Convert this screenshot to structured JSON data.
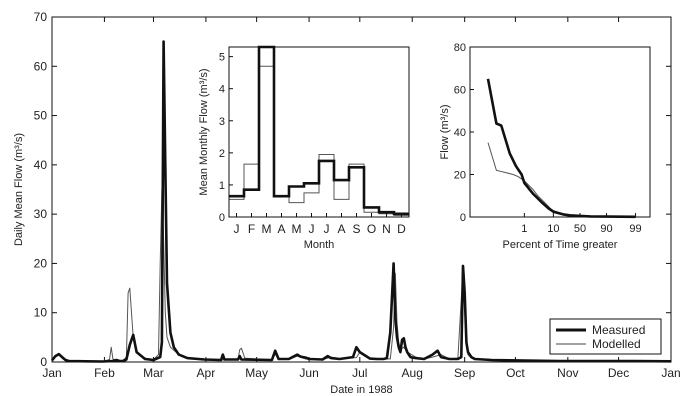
{
  "chart_data": [
    {
      "type": "line",
      "xlabel": "Date in 1988",
      "ylabel": "Daily Mean Flow (m³/s)",
      "ylim": [
        0,
        70
      ],
      "xlim": [
        0,
        366
      ],
      "yticks": [
        0,
        10,
        20,
        30,
        40,
        50,
        60,
        70
      ],
      "xticks": [
        {
          "label": "Jan",
          "day": 0
        },
        {
          "label": "Feb",
          "day": 31
        },
        {
          "label": "Mar",
          "day": 60
        },
        {
          "label": "Apr",
          "day": 91
        },
        {
          "label": "May",
          "day": 121
        },
        {
          "label": "Jun",
          "day": 152
        },
        {
          "label": "Jul",
          "day": 182
        },
        {
          "label": "Aug",
          "day": 213
        },
        {
          "label": "Sep",
          "day": 244
        },
        {
          "label": "Oct",
          "day": 274
        },
        {
          "label": "Nov",
          "day": 305
        },
        {
          "label": "Dec",
          "day": 335
        },
        {
          "label": "Jan",
          "day": 366
        }
      ],
      "legend": {
        "placement": "bottom-right",
        "entries": [
          "Measured",
          "Modelled"
        ]
      },
      "series": [
        {
          "name": "Measured",
          "x": [
            0,
            2,
            4,
            6,
            8,
            10,
            20,
            30,
            36,
            38,
            40,
            42,
            44,
            46,
            48,
            50,
            55,
            60,
            64,
            65,
            66,
            67,
            68,
            70,
            72,
            75,
            80,
            90,
            100,
            101,
            102,
            110,
            111,
            112,
            130,
            132,
            134,
            140,
            145,
            147,
            150,
            152,
            160,
            163,
            165,
            170,
            178,
            180,
            182,
            188,
            192,
            196,
            198,
            200,
            202,
            203,
            204,
            205,
            206,
            207,
            208,
            209,
            210,
            212,
            215,
            220,
            225,
            228,
            230,
            235,
            240,
            242,
            243,
            244,
            245,
            246,
            248,
            250,
            255,
            260,
            270,
            280,
            290,
            300,
            320,
            340,
            366
          ],
          "y": [
            0.3,
            1.2,
            1.6,
            1.0,
            0.4,
            0.2,
            0.15,
            0.1,
            0.2,
            0.4,
            0.2,
            0.2,
            0.5,
            3.5,
            5.5,
            2.0,
            0.6,
            0.4,
            1.0,
            4.0,
            65,
            40,
            16,
            6.0,
            3.0,
            1.5,
            0.8,
            0.5,
            0.4,
            1.5,
            0.5,
            0.5,
            1.2,
            0.5,
            0.4,
            2.3,
            0.6,
            0.6,
            1.5,
            1.1,
            0.9,
            0.6,
            0.5,
            1.2,
            0.8,
            0.6,
            1.0,
            3.0,
            2.0,
            0.7,
            0.6,
            0.6,
            0.8,
            6.0,
            20,
            9.0,
            5.0,
            3.0,
            2.0,
            4.5,
            4.8,
            3.0,
            2.0,
            1.0,
            0.8,
            0.6,
            1.5,
            2.3,
            1.0,
            0.6,
            0.6,
            1.0,
            19.5,
            14,
            4.0,
            2.0,
            1.0,
            0.6,
            0.5,
            0.4,
            0.35,
            0.3,
            0.25,
            0.2,
            0.2,
            0.2,
            0.15
          ]
        },
        {
          "name": "Modelled",
          "x": [
            0,
            2,
            4,
            6,
            8,
            10,
            20,
            30,
            34,
            35,
            36,
            38,
            40,
            42,
            44,
            45,
            46,
            48,
            50,
            55,
            60,
            63,
            64,
            65,
            66,
            67,
            68,
            70,
            75,
            80,
            90,
            100,
            110,
            111,
            112,
            114,
            130,
            132,
            134,
            140,
            145,
            150,
            160,
            165,
            170,
            180,
            182,
            188,
            200,
            202,
            203,
            204,
            205,
            206,
            208,
            210,
            215,
            220,
            225,
            230,
            235,
            240,
            243,
            244,
            245,
            246,
            248,
            250,
            260,
            280,
            300,
            320,
            340,
            366
          ],
          "y": [
            0.2,
            1.0,
            1.4,
            0.8,
            0.3,
            0.2,
            0.15,
            0.1,
            0.5,
            3.0,
            0.6,
            0.3,
            0.3,
            0.3,
            1.0,
            14,
            15,
            5.0,
            2.0,
            0.8,
            0.5,
            1.5,
            20,
            35,
            25,
            10,
            5.0,
            3.0,
            1.5,
            0.8,
            0.5,
            0.4,
            0.5,
            2.5,
            2.8,
            0.8,
            0.4,
            1.6,
            0.5,
            0.5,
            1.2,
            0.6,
            0.5,
            1.0,
            0.7,
            0.9,
            2.0,
            0.8,
            0.6,
            7.0,
            18,
            8.0,
            4.0,
            2.5,
            3.0,
            2.0,
            1.0,
            0.6,
            1.0,
            1.5,
            0.6,
            0.8,
            19,
            14,
            3.0,
            1.5,
            0.8,
            0.5,
            0.4,
            0.3,
            0.25,
            0.2,
            0.2,
            0.15
          ]
        }
      ]
    },
    {
      "type": "line",
      "step": true,
      "xlabel": "Month",
      "ylabel": "Mean Monthly Flow (m³/s)",
      "ylim": [
        0,
        5.3
      ],
      "yticks": [
        0,
        1,
        2,
        3,
        4,
        5
      ],
      "categories": [
        "J",
        "F",
        "M",
        "A",
        "M",
        "J",
        "J",
        "A",
        "S",
        "O",
        "N",
        "D"
      ],
      "series": [
        {
          "name": "Measured",
          "values": [
            0.65,
            0.85,
            5.3,
            0.65,
            0.95,
            1.05,
            1.75,
            1.15,
            1.55,
            0.3,
            0.15,
            0.1
          ]
        },
        {
          "name": "Modelled",
          "values": [
            0.55,
            1.65,
            4.7,
            0.65,
            0.45,
            0.75,
            1.95,
            0.55,
            1.65,
            0.15,
            0.1,
            0.05
          ]
        }
      ]
    },
    {
      "type": "line",
      "xlabel": "Percent of Time greater",
      "ylabel": "Flow (m³/s)",
      "ylim": [
        0,
        80
      ],
      "yticks": [
        0,
        20,
        40,
        60,
        80
      ],
      "xticks": [
        "1",
        "10",
        "50",
        "90",
        "99"
      ],
      "series": [
        {
          "name": "Measured",
          "x": [
            0.05,
            0.1,
            0.15,
            0.3,
            0.5,
            0.8,
            1,
            2,
            4,
            7,
            10,
            20,
            30,
            50,
            70,
            90,
            99
          ],
          "y": [
            65,
            44,
            43,
            30,
            24,
            20,
            16,
            11,
            7,
            4,
            2.5,
            1.2,
            0.8,
            0.5,
            0.3,
            0.2,
            0.1
          ]
        },
        {
          "name": "Modelled",
          "x": [
            0.05,
            0.1,
            0.2,
            0.4,
            0.6,
            1,
            2,
            3,
            5,
            8,
            10,
            20,
            30,
            50,
            70,
            90,
            99
          ],
          "y": [
            35,
            22,
            21,
            20,
            19,
            17,
            13,
            10,
            7,
            4,
            3,
            1.5,
            1,
            0.5,
            0.3,
            0.2,
            0.1
          ]
        }
      ]
    }
  ]
}
